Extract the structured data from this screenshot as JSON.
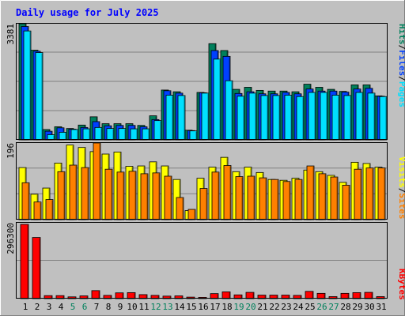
{
  "title": "Daily usage for July 2025",
  "colors": {
    "title": "#0000ff",
    "frame": "#c0c0c0",
    "plot_bg": "#c0c0c0",
    "gridline": "#808080",
    "hits": "#00805c",
    "files": "#0040ff",
    "pages": "#00e0ff",
    "visits": "#ffff00",
    "sites": "#ff8000",
    "kbytes": "#ff0000",
    "weekend_label": "#00805c",
    "weekday_label": "#000000"
  },
  "chart_data": [
    {
      "type": "bar",
      "series": [
        {
          "name": "Hits",
          "values": [
            3381,
            2610,
            300,
            380,
            330,
            430,
            670,
            470,
            470,
            470,
            420,
            700,
            1450,
            1400,
            280,
            1380,
            2800,
            2600,
            1470,
            1530,
            1440,
            1420,
            1420,
            1400,
            1620,
            1530,
            1470,
            1410,
            1600,
            1600,
            1280
          ]
        },
        {
          "name": "Files",
          "values": [
            3300,
            2580,
            250,
            350,
            310,
            360,
            530,
            410,
            420,
            420,
            380,
            590,
            1430,
            1360,
            270,
            1370,
            2600,
            2430,
            1350,
            1400,
            1340,
            1340,
            1380,
            1340,
            1480,
            1420,
            1420,
            1390,
            1480,
            1500,
            1270
          ]
        },
        {
          "name": "Pages",
          "values": [
            3170,
            2540,
            150,
            220,
            300,
            320,
            360,
            330,
            330,
            320,
            320,
            560,
            1300,
            1290,
            260,
            1360,
            2350,
            1720,
            1270,
            1360,
            1290,
            1290,
            1300,
            1260,
            1380,
            1380,
            1300,
            1290,
            1380,
            1360,
            1260
          ]
        }
      ],
      "ymax_label": "3381"
    },
    {
      "type": "bar",
      "series": [
        {
          "name": "Visits",
          "values": [
            127,
            62,
            77,
            138,
            182,
            176,
            166,
            160,
            165,
            130,
            131,
            141,
            131,
            98,
            22,
            101,
            128,
            152,
            117,
            128,
            115,
            98,
            96,
            101,
            121,
            117,
            108,
            91,
            140,
            137,
            128
          ]
        },
        {
          "name": "Sites",
          "values": [
            90,
            43,
            49,
            117,
            133,
            127,
            187,
            123,
            116,
            118,
            112,
            114,
            106,
            54,
            25,
            76,
            116,
            132,
            105,
            106,
            102,
            98,
            93,
            98,
            131,
            112,
            104,
            84,
            123,
            126,
            126
          ]
        }
      ],
      "ymax_label": "196"
    },
    {
      "type": "bar",
      "series": [
        {
          "name": "KBytes",
          "values": [
            296300,
            244000,
            12000,
            12000,
            7000,
            11000,
            32000,
            13000,
            23000,
            24000,
            16000,
            13000,
            10000,
            11000,
            6000,
            5000,
            20000,
            27000,
            15000,
            25000,
            14000,
            14000,
            14000,
            13000,
            29000,
            21000,
            8000,
            21000,
            24000,
            25000,
            8000
          ]
        }
      ],
      "ymax_label": "296300"
    }
  ],
  "x_labels": [
    "1",
    "2",
    "3",
    "4",
    "5",
    "6",
    "7",
    "8",
    "9",
    "10",
    "11",
    "12",
    "13",
    "14",
    "15",
    "16",
    "17",
    "18",
    "19",
    "20",
    "21",
    "22",
    "23",
    "24",
    "25",
    "26",
    "27",
    "28",
    "29",
    "30",
    "31"
  ],
  "weekend_days": [
    5,
    6,
    12,
    13,
    19,
    20,
    26,
    27
  ],
  "legends": {
    "top": {
      "pages": "Pages",
      "files": "Files",
      "hits": "Hits",
      "sep": "/"
    },
    "middle": {
      "sites": "Sites",
      "visits": "Visits",
      "sep": "/"
    },
    "bottom": {
      "kbytes": "KBytes"
    }
  }
}
